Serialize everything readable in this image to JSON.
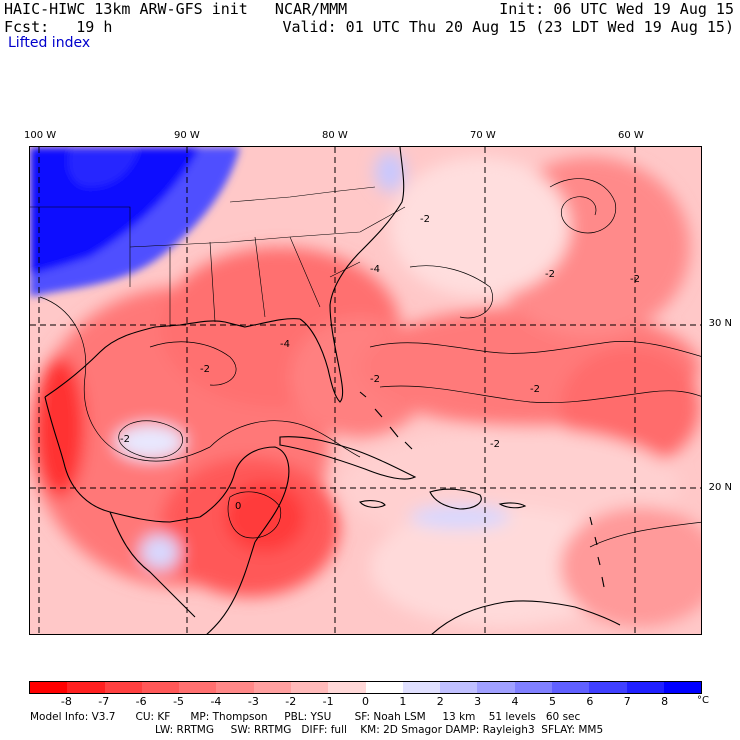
{
  "header": {
    "line1_left": "HAIC-HIWC 13km ARW-GFS init   NCAR/MMM",
    "line1_right": "Init: 06 UTC Wed 19 Aug 15",
    "line2_left": "Fcst:   19 h",
    "line2_right": "Valid: 01 UTC Thu 20 Aug 15 (23 LDT Wed 19 Aug 15)"
  },
  "field_name": "Lifted index",
  "longitudes": [
    "100 W",
    "90 W",
    "80 W",
    "70 W",
    "60 W"
  ],
  "latitudes": [
    "30 N",
    "20 N"
  ],
  "colorbar": {
    "ticks": [
      "-8",
      "-7",
      "-6",
      "-5",
      "-4",
      "-3",
      "-2",
      "-1",
      "0",
      "1",
      "2",
      "3",
      "4",
      "5",
      "6",
      "7",
      "8"
    ],
    "unit": "°C",
    "colors": [
      "#ff0000",
      "#ff2020",
      "#ff4040",
      "#ff5858",
      "#ff7070",
      "#ff8888",
      "#ffa0a0",
      "#ffbaba",
      "#ffd8d8",
      "#ffffff",
      "#e0e0ff",
      "#c0c0ff",
      "#a0a0ff",
      "#8080ff",
      "#6060ff",
      "#4040ff",
      "#2020ff",
      "#0000ff"
    ]
  },
  "footer": {
    "line1": "Model Info: V3.7      CU: KF      MP: Thompson     PBL: YSU       SF: Noah LSM     13 km    51 levels   60 sec",
    "line2": "LW: RRTMG     SW: RRTMG   DIFF: full    KM: 2D Smagor DAMP: Rayleigh3  SFLAY: MM5"
  },
  "contour_labels": [
    "-2",
    "-2",
    "-2",
    "-4",
    "-2",
    "-2",
    "0",
    "-2",
    "-2",
    "-4",
    "-2"
  ]
}
